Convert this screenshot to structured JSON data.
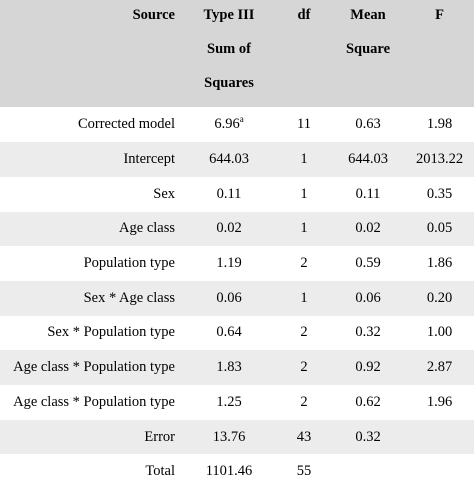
{
  "table": {
    "headers": {
      "source": "Source",
      "ss": [
        "Type III",
        "Sum of",
        "Squares"
      ],
      "df": "df",
      "ms": [
        "Mean",
        "Square"
      ],
      "f": "F"
    },
    "rows": [
      {
        "source": "Corrected model",
        "ss": "6.96",
        "ss_sup": "a",
        "df": "11",
        "ms": "0.63",
        "f": "1.98"
      },
      {
        "source": "Intercept",
        "ss": "644.03",
        "ss_sup": "",
        "df": "1",
        "ms": "644.03",
        "f": "2013.22"
      },
      {
        "source": "Sex",
        "ss": "0.11",
        "ss_sup": "",
        "df": "1",
        "ms": "0.11",
        "f": "0.35"
      },
      {
        "source": "Age class",
        "ss": "0.02",
        "ss_sup": "",
        "df": "1",
        "ms": "0.02",
        "f": "0.05"
      },
      {
        "source": "Population type",
        "ss": "1.19",
        "ss_sup": "",
        "df": "2",
        "ms": "0.59",
        "f": "1.86"
      },
      {
        "source": "Sex * Age class",
        "ss": "0.06",
        "ss_sup": "",
        "df": "1",
        "ms": "0.06",
        "f": "0.20"
      },
      {
        "source": "Sex * Population type",
        "ss": "0.64",
        "ss_sup": "",
        "df": "2",
        "ms": "0.32",
        "f": "1.00"
      },
      {
        "source": "Age class * Population type",
        "ss": "1.83",
        "ss_sup": "",
        "df": "2",
        "ms": "0.92",
        "f": "2.87"
      },
      {
        "source": "Age class * Population type",
        "ss": "1.25",
        "ss_sup": "",
        "df": "2",
        "ms": "0.62",
        "f": "1.96"
      },
      {
        "source": "Error",
        "ss": "13.76",
        "ss_sup": "",
        "df": "43",
        "ms": "0.32",
        "f": ""
      },
      {
        "source": "Total",
        "ss": "1101.46",
        "ss_sup": "",
        "df": "55",
        "ms": "",
        "f": ""
      }
    ]
  },
  "colors": {
    "header_bg": "#d6d6d6",
    "stripe_bg": "#ececec"
  }
}
